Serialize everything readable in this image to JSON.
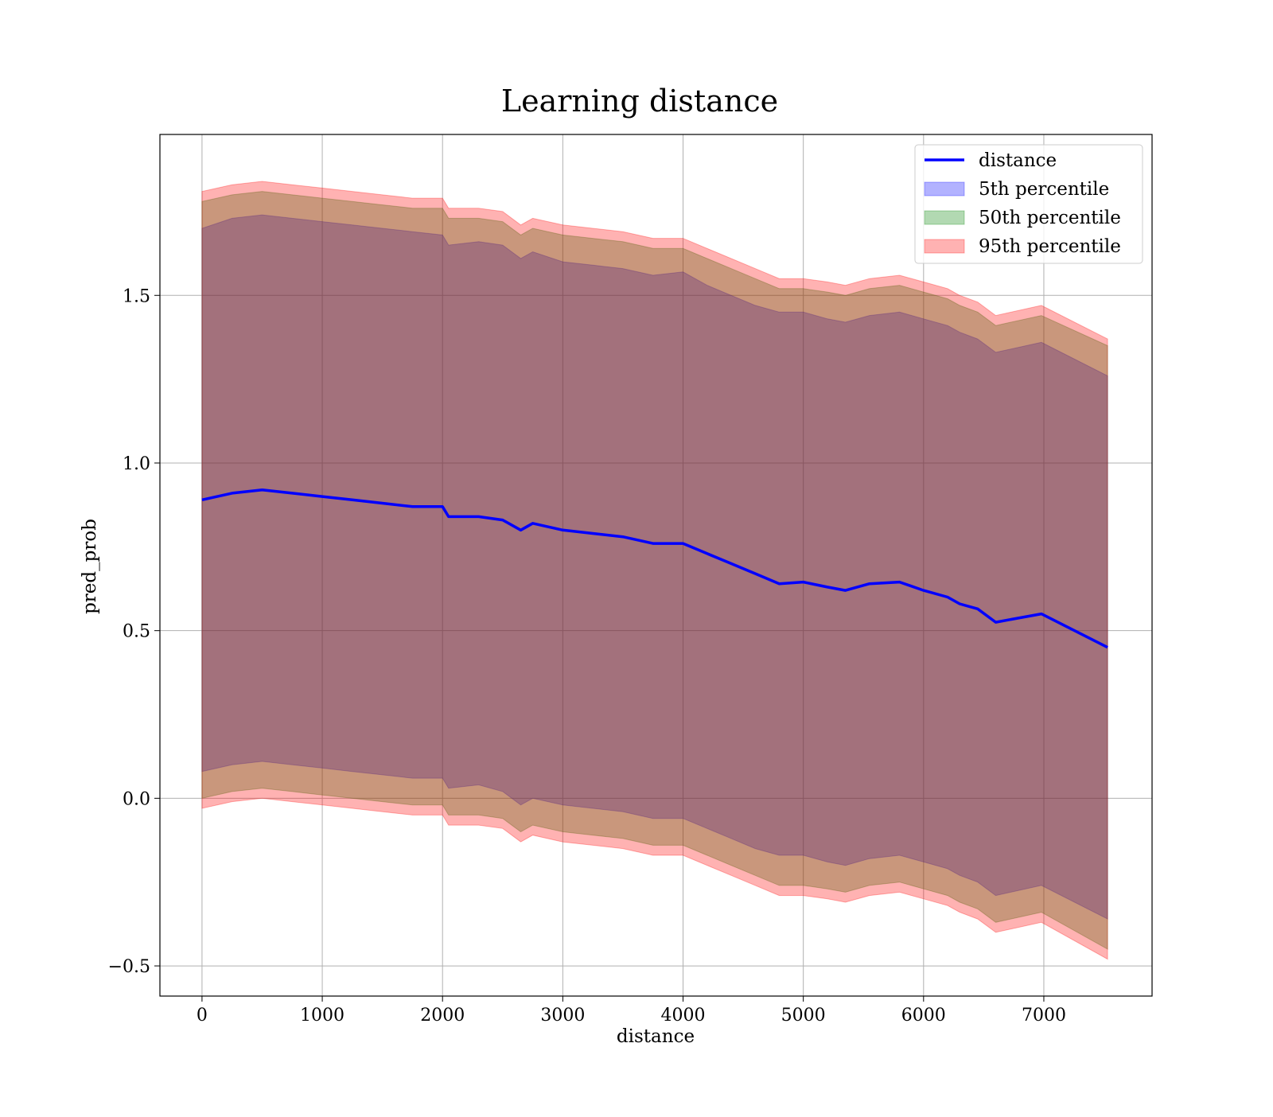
{
  "chart_data": {
    "type": "area",
    "title": "Learning distance",
    "xlabel": "distance",
    "ylabel": "pred_prob",
    "xlim": [
      -350,
      7900
    ],
    "ylim": [
      -0.59,
      1.98
    ],
    "xticks": [
      0,
      1000,
      2000,
      3000,
      4000,
      5000,
      6000,
      7000
    ],
    "yticks": [
      -0.5,
      0.0,
      0.5,
      1.0,
      1.5
    ],
    "ytick_labels": [
      "−0.5",
      "0.0",
      "0.5",
      "1.0",
      "1.5"
    ],
    "grid": true,
    "legend_position": "upper right",
    "x": [
      0,
      250,
      500,
      750,
      1000,
      1250,
      1500,
      1750,
      2000,
      2050,
      2300,
      2500,
      2650,
      2750,
      3000,
      3250,
      3500,
      3750,
      4000,
      4200,
      4400,
      4600,
      4800,
      5000,
      5200,
      5350,
      5550,
      5800,
      6000,
      6200,
      6300,
      6450,
      6600,
      6980,
      7530
    ],
    "series": [
      {
        "name": "distance",
        "kind": "line",
        "color": "#0000ff",
        "values": [
          0.89,
          0.91,
          0.92,
          0.91,
          0.9,
          0.89,
          0.88,
          0.87,
          0.87,
          0.84,
          0.84,
          0.83,
          0.8,
          0.82,
          0.8,
          0.79,
          0.78,
          0.76,
          0.76,
          0.73,
          0.7,
          0.67,
          0.64,
          0.645,
          0.63,
          0.62,
          0.64,
          0.645,
          0.62,
          0.6,
          0.58,
          0.565,
          0.525,
          0.55,
          0.45
        ]
      },
      {
        "name": "5th percentile",
        "kind": "band",
        "color": "#0000ff",
        "upper": [
          1.7,
          1.73,
          1.74,
          1.73,
          1.72,
          1.71,
          1.7,
          1.69,
          1.68,
          1.65,
          1.66,
          1.65,
          1.61,
          1.63,
          1.6,
          1.59,
          1.58,
          1.56,
          1.57,
          1.53,
          1.5,
          1.47,
          1.45,
          1.45,
          1.43,
          1.42,
          1.44,
          1.45,
          1.43,
          1.41,
          1.39,
          1.37,
          1.33,
          1.36,
          1.26
        ],
        "lower": [
          0.08,
          0.1,
          0.11,
          0.1,
          0.09,
          0.08,
          0.07,
          0.06,
          0.06,
          0.03,
          0.04,
          0.02,
          -0.02,
          0.0,
          -0.02,
          -0.03,
          -0.04,
          -0.06,
          -0.06,
          -0.09,
          -0.12,
          -0.15,
          -0.17,
          -0.17,
          -0.19,
          -0.2,
          -0.18,
          -0.17,
          -0.19,
          -0.21,
          -0.23,
          -0.25,
          -0.29,
          -0.26,
          -0.36
        ]
      },
      {
        "name": "50th percentile",
        "kind": "band",
        "color": "#008000",
        "upper": [
          1.78,
          1.8,
          1.81,
          1.8,
          1.79,
          1.78,
          1.77,
          1.76,
          1.76,
          1.73,
          1.73,
          1.72,
          1.68,
          1.7,
          1.68,
          1.67,
          1.66,
          1.64,
          1.64,
          1.61,
          1.58,
          1.55,
          1.52,
          1.52,
          1.51,
          1.5,
          1.52,
          1.53,
          1.51,
          1.49,
          1.47,
          1.45,
          1.41,
          1.44,
          1.35
        ],
        "lower": [
          0.0,
          0.02,
          0.03,
          0.02,
          0.01,
          0.0,
          -0.01,
          -0.02,
          -0.02,
          -0.05,
          -0.05,
          -0.06,
          -0.1,
          -0.08,
          -0.1,
          -0.11,
          -0.12,
          -0.14,
          -0.14,
          -0.17,
          -0.2,
          -0.23,
          -0.26,
          -0.26,
          -0.27,
          -0.28,
          -0.26,
          -0.25,
          -0.27,
          -0.29,
          -0.31,
          -0.33,
          -0.37,
          -0.34,
          -0.45
        ]
      },
      {
        "name": "95th percentile",
        "kind": "band",
        "color": "#ff0000",
        "upper": [
          1.81,
          1.83,
          1.84,
          1.83,
          1.82,
          1.81,
          1.8,
          1.79,
          1.79,
          1.76,
          1.76,
          1.75,
          1.71,
          1.73,
          1.71,
          1.7,
          1.69,
          1.67,
          1.67,
          1.64,
          1.61,
          1.58,
          1.55,
          1.55,
          1.54,
          1.53,
          1.55,
          1.56,
          1.54,
          1.52,
          1.5,
          1.48,
          1.44,
          1.47,
          1.37
        ],
        "lower": [
          -0.03,
          -0.01,
          0.0,
          -0.01,
          -0.02,
          -0.03,
          -0.04,
          -0.05,
          -0.05,
          -0.08,
          -0.08,
          -0.09,
          -0.13,
          -0.11,
          -0.13,
          -0.14,
          -0.15,
          -0.17,
          -0.17,
          -0.2,
          -0.23,
          -0.26,
          -0.29,
          -0.29,
          -0.3,
          -0.31,
          -0.29,
          -0.28,
          -0.3,
          -0.32,
          -0.34,
          -0.36,
          -0.4,
          -0.37,
          -0.48
        ]
      }
    ]
  }
}
